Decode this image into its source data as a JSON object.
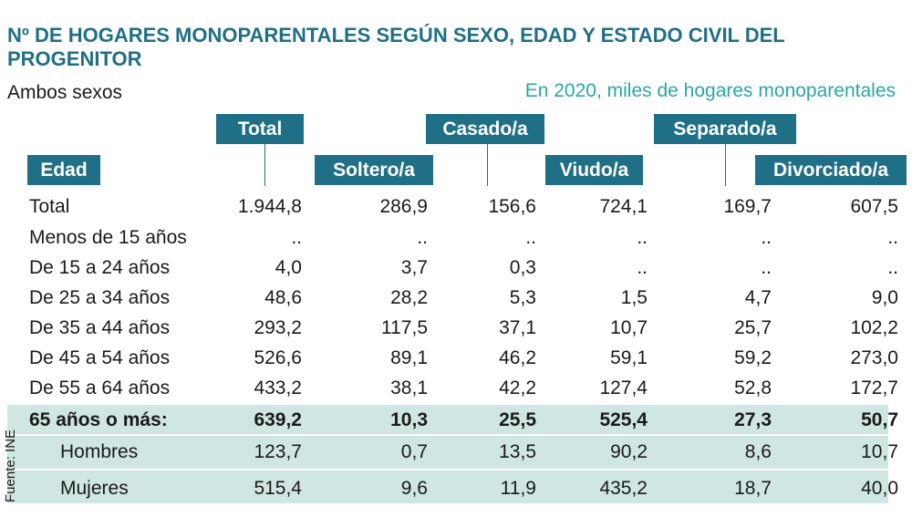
{
  "title": "Nº  DE HOGARES MONOPARENTALES SEGÚN SEXO, EDAD Y ESTADO CIVIL DEL PROGENITOR",
  "subtitle_left": "Ambos sexos",
  "subtitle_right": "En 2020, miles de hogares monoparentales",
  "source": "Fuente: INE",
  "colors": {
    "header": "#1f6f86",
    "band": "#cfe6e3",
    "subtitle_right": "#2aa8a0"
  },
  "chart_data": {
    "type": "table",
    "row_header": "Edad",
    "columns": [
      "Total",
      "Soltero/a",
      "Casado/a",
      "Viudo/a",
      "Separado/a",
      "Divorciado/a"
    ],
    "rows": [
      {
        "label": "Total",
        "values": [
          "1.944,8",
          "286,9",
          "156,6",
          "724,1",
          "169,7",
          "607,5"
        ]
      },
      {
        "label": "Menos de 15 años",
        "values": [
          "..",
          "..",
          "..",
          "..",
          "..",
          ".."
        ]
      },
      {
        "label": "De 15 a 24 años",
        "values": [
          "4,0",
          "3,7",
          "0,3",
          "..",
          "..",
          ".."
        ]
      },
      {
        "label": "De 25 a 34 años",
        "values": [
          "48,6",
          "28,2",
          "5,3",
          "1,5",
          "4,7",
          "9,0"
        ]
      },
      {
        "label": "De 35 a 44 años",
        "values": [
          "293,2",
          "117,5",
          "37,1",
          "10,7",
          "25,7",
          "102,2"
        ]
      },
      {
        "label": "De 45 a 54 años",
        "values": [
          "526,6",
          "89,1",
          "46,2",
          "59,1",
          "59,2",
          "273,0"
        ]
      },
      {
        "label": "De 55 a 64 años",
        "values": [
          "433,2",
          "38,1",
          "42,2",
          "127,4",
          "52,8",
          "172,7"
        ]
      },
      {
        "label": "65 años o más:",
        "values": [
          "639,2",
          "10,3",
          "25,5",
          "525,4",
          "27,3",
          "50,7"
        ]
      },
      {
        "label": "Hombres",
        "values": [
          "123,7",
          "0,7",
          "13,5",
          "90,2",
          "8,6",
          "10,7"
        ]
      },
      {
        "label": "Mujeres",
        "values": [
          "515,4",
          "9,6",
          "11,9",
          "435,2",
          "18,7",
          "40,0"
        ]
      }
    ]
  }
}
